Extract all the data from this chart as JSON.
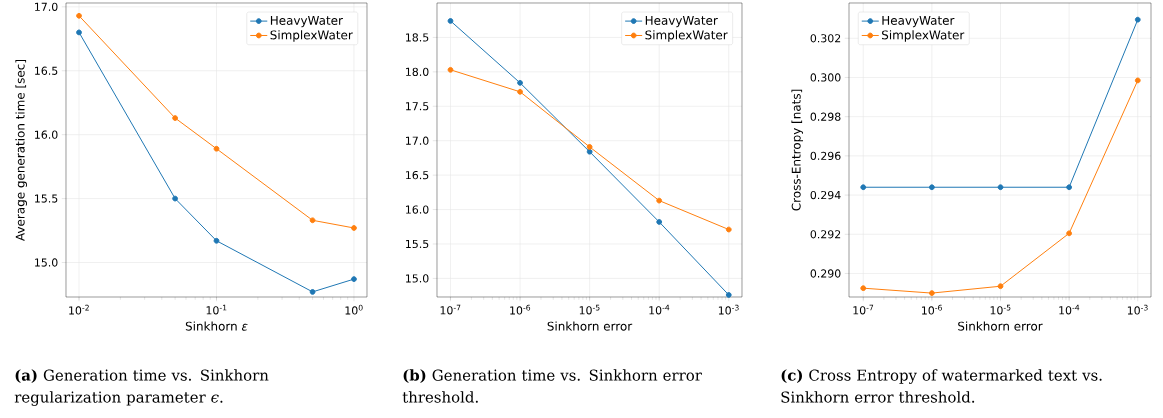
{
  "chart_data": [
    {
      "type": "line",
      "xlabel": "Sinkhorn *ε*",
      "ylabel": "Average generation time [sec]",
      "log": "x",
      "grid": true,
      "marker": "circle",
      "legend": "top right",
      "x": [
        0.01,
        0.05,
        0.1,
        0.5,
        1
      ],
      "xlim": [
        0.00804,
        1.244
      ],
      "ylim": [
        14.73,
        17.03
      ],
      "xticks": [
        {
          "value": 0.01,
          "label": "10$^{-2}$"
        },
        {
          "value": 0.1,
          "label": "10$^{-1}$"
        },
        {
          "value": 1,
          "label": "10$^{0}$"
        }
      ],
      "yticks": [
        {
          "value": 15,
          "label": "15.0"
        },
        {
          "value": 15.5,
          "label": "15.5"
        },
        {
          "value": 16,
          "label": "16.0"
        },
        {
          "value": 16.5,
          "label": "16.5"
        },
        {
          "value": 17,
          "label": "17.0"
        }
      ],
      "series": [
        {
          "name": "HeavyWater",
          "color": "#1f77b4",
          "values": [
            16.8,
            15.5,
            15.17,
            14.77,
            14.87
          ]
        },
        {
          "name": "SimplexWater",
          "color": "#ff7f0e",
          "values": [
            16.93,
            16.13,
            15.89,
            15.33,
            15.27
          ]
        }
      ],
      "annotations": [
        "**(a)** Generation time vs. Sinkhorn regularization parameter *ϵ*."
      ]
    },
    {
      "type": "line",
      "xlabel": "Sinkhorn error",
      "log": "x",
      "grid": true,
      "marker": "circle",
      "legend": "top right",
      "x": [
        1e-07,
        1e-06,
        1e-05,
        0.0001,
        0.001
      ],
      "xlim": [
        6.4e-08,
        0.00155
      ],
      "ylim": [
        14.73,
        19.0
      ],
      "xticks": [
        {
          "value": 1e-07,
          "label": "10$^{-7}$"
        },
        {
          "value": 1e-06,
          "label": "10$^{-6}$"
        },
        {
          "value": 1e-05,
          "label": "10$^{-5}$"
        },
        {
          "value": 0.0001,
          "label": "10$^{-4}$"
        },
        {
          "value": 0.001,
          "label": "10$^{-3}$"
        }
      ],
      "yticks": [
        {
          "value": 15,
          "label": "15.0"
        },
        {
          "value": 15.5,
          "label": "15.5"
        },
        {
          "value": 16,
          "label": "16.0"
        },
        {
          "value": 16.5,
          "label": "16.5"
        },
        {
          "value": 17,
          "label": "17.0"
        },
        {
          "value": 17.5,
          "label": "17.5"
        },
        {
          "value": 18,
          "label": "18.0"
        },
        {
          "value": 18.5,
          "label": "18.5"
        }
      ],
      "series": [
        {
          "name": "HeavyWater",
          "color": "#1f77b4",
          "values": [
            18.74,
            17.84,
            16.84,
            15.82,
            14.76
          ]
        },
        {
          "name": "SimplexWater",
          "color": "#ff7f0e",
          "values": [
            18.03,
            17.71,
            16.91,
            16.13,
            15.71
          ]
        }
      ],
      "annotations": [
        "**(b)** Generation time vs. Sinkhorn error threshold."
      ]
    },
    {
      "type": "line",
      "xlabel": "Sinkhorn error",
      "ylabel": "Cross-Entropy [nats]",
      "log": "x",
      "grid": true,
      "marker": "circle",
      "legend": "top left",
      "x": [
        1e-07,
        1e-06,
        1e-05,
        0.0001,
        0.001
      ],
      "xlim": [
        6.2e-08,
        0.00156
      ],
      "ylim": [
        0.2888,
        0.3038
      ],
      "xticks": [
        {
          "value": 1e-07,
          "label": "10$^{-7}$"
        },
        {
          "value": 1e-06,
          "label": "10$^{-6}$"
        },
        {
          "value": 1e-05,
          "label": "10$^{-5}$"
        },
        {
          "value": 0.0001,
          "label": "10$^{-4}$"
        },
        {
          "value": 0.001,
          "label": "10$^{-3}$"
        }
      ],
      "yticks": [
        {
          "value": 0.29,
          "label": "0.290"
        },
        {
          "value": 0.292,
          "label": "0.292"
        },
        {
          "value": 0.294,
          "label": "0.294"
        },
        {
          "value": 0.296,
          "label": "0.296"
        },
        {
          "value": 0.298,
          "label": "0.298"
        },
        {
          "value": 0.3,
          "label": "0.300"
        },
        {
          "value": 0.302,
          "label": "0.302"
        }
      ],
      "series": [
        {
          "name": "HeavyWater",
          "color": "#1f77b4",
          "values": [
            0.2944,
            0.2944,
            0.2944,
            0.2944,
            0.30295
          ]
        },
        {
          "name": "SimplexWater",
          "color": "#ff7f0e",
          "values": [
            0.28925,
            0.289,
            0.28935,
            0.29205,
            0.29985
          ]
        }
      ],
      "annotations": [
        "**(c)** Cross Entropy of watermarked text vs. Sinkhorn error threshold."
      ]
    }
  ]
}
